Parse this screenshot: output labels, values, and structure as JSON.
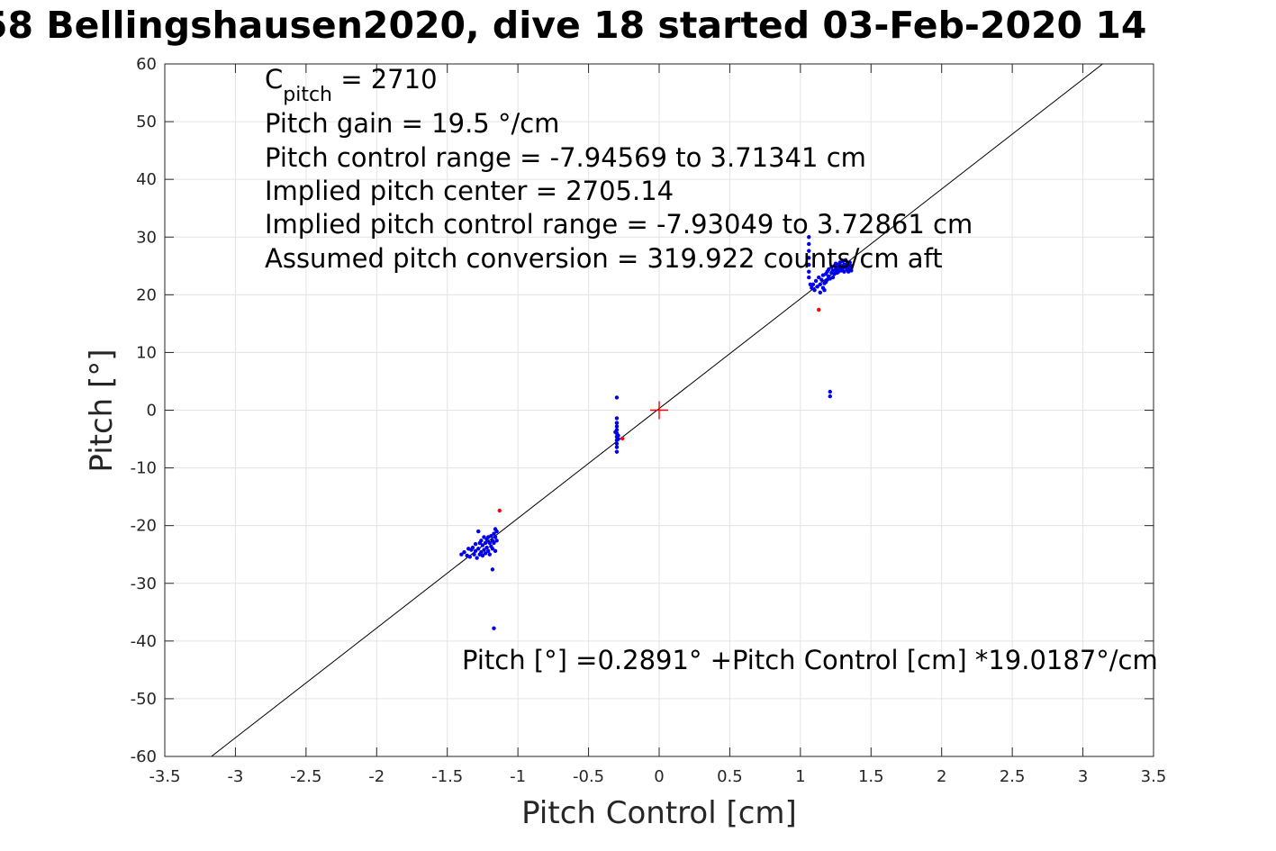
{
  "chart_data": {
    "type": "scatter",
    "title": "58 Bellingshausen2020, dive 18 started 03-Feb-2020 14",
    "xlabel": "Pitch Control [cm]",
    "ylabel": "Pitch [°]",
    "xlim": [
      -3.5,
      3.5
    ],
    "ylim": [
      -60,
      60
    ],
    "xticks": [
      -3.5,
      -3,
      -2.5,
      -2,
      -1.5,
      -1,
      -0.5,
      0,
      0.5,
      1,
      1.5,
      2,
      2.5,
      3,
      3.5
    ],
    "xtick_labels": [
      "-3.5",
      "-3",
      "-2.5",
      "-2",
      "-1.5",
      "-1",
      "-0.5",
      "0",
      "0.5",
      "1",
      "1.5",
      "2",
      "2.5",
      "3",
      "3.5"
    ],
    "yticks": [
      -60,
      -50,
      -40,
      -30,
      -20,
      -10,
      0,
      10,
      20,
      30,
      40,
      50,
      60
    ],
    "ytick_labels": [
      "-60",
      "-50",
      "-40",
      "-30",
      "-20",
      "-10",
      "0",
      "10",
      "20",
      "30",
      "40",
      "50",
      "60"
    ],
    "grid": true,
    "fit_line": {
      "intercept": 0.2891,
      "slope": 19.0187
    },
    "center_marker": {
      "x": 0,
      "y": 0,
      "color": "#ff0000"
    },
    "annotations": {
      "c_pitch_prefix": "C",
      "c_pitch_sub": "pitch",
      "c_pitch_value": " = 2710",
      "lines": [
        "Pitch gain = 19.5 °/cm",
        "Pitch control range = -7.94569 to 3.71341 cm",
        "Implied pitch center = 2705.14",
        "Implied pitch control range = -7.93049 to 3.72861 cm",
        "Assumed pitch conversion = 319.922 counts/cm aft"
      ],
      "equation": "Pitch [°] =0.2891° +Pitch Control [cm] *19.0187°/cm"
    },
    "series": [
      {
        "color": "#0000ee",
        "points": [
          [
            -1.4,
            -25.0
          ],
          [
            -1.38,
            -24.6
          ],
          [
            -1.36,
            -25.2
          ],
          [
            -1.35,
            -24.0
          ],
          [
            -1.34,
            -25.4
          ],
          [
            -1.33,
            -24.2
          ],
          [
            -1.32,
            -23.8
          ],
          [
            -1.31,
            -25.0
          ],
          [
            -1.3,
            -24.4
          ],
          [
            -1.3,
            -23.2
          ],
          [
            -1.29,
            -25.6
          ],
          [
            -1.28,
            -21.0
          ],
          [
            -1.28,
            -24.0
          ],
          [
            -1.27,
            -23.0
          ],
          [
            -1.27,
            -25.0
          ],
          [
            -1.26,
            -22.6
          ],
          [
            -1.26,
            -24.6
          ],
          [
            -1.25,
            -23.4
          ],
          [
            -1.25,
            -25.2
          ],
          [
            -1.24,
            -22.0
          ],
          [
            -1.24,
            -24.2
          ],
          [
            -1.23,
            -23.0
          ],
          [
            -1.23,
            -24.8
          ],
          [
            -1.22,
            -22.4
          ],
          [
            -1.22,
            -23.8
          ],
          [
            -1.21,
            -22.0
          ],
          [
            -1.21,
            -24.4
          ],
          [
            -1.2,
            -23.0
          ],
          [
            -1.2,
            -25.0
          ],
          [
            -1.19,
            -21.8
          ],
          [
            -1.19,
            -23.6
          ],
          [
            -1.18,
            -22.6
          ],
          [
            -1.18,
            -24.0
          ],
          [
            -1.18,
            -27.6
          ],
          [
            -1.17,
            -21.4
          ],
          [
            -1.17,
            -23.0
          ],
          [
            -1.16,
            -22.0
          ],
          [
            -1.16,
            -24.4
          ],
          [
            -1.15,
            -21.0
          ],
          [
            -1.15,
            -22.6
          ],
          [
            -1.16,
            -20.6
          ],
          [
            -1.17,
            -37.8
          ],
          [
            -0.3,
            2.2
          ],
          [
            -0.3,
            -1.4
          ],
          [
            -0.3,
            -2.2
          ],
          [
            -0.3,
            -2.8
          ],
          [
            -0.3,
            -3.4
          ],
          [
            -0.3,
            -4.0
          ],
          [
            -0.3,
            -4.6
          ],
          [
            -0.3,
            -5.2
          ],
          [
            -0.3,
            -5.8
          ],
          [
            -0.3,
            -6.4
          ],
          [
            -0.3,
            -7.2
          ],
          [
            -0.29,
            -4.4
          ],
          [
            -0.29,
            -5.0
          ],
          [
            -0.31,
            -3.8
          ],
          [
            1.06,
            30.0
          ],
          [
            1.06,
            28.8
          ],
          [
            1.06,
            27.6
          ],
          [
            1.06,
            26.4
          ],
          [
            1.06,
            25.2
          ],
          [
            1.06,
            24.0
          ],
          [
            1.06,
            23.0
          ],
          [
            1.07,
            21.8
          ],
          [
            1.08,
            21.2
          ],
          [
            1.09,
            21.8
          ],
          [
            1.1,
            20.8
          ],
          [
            1.11,
            22.4
          ],
          [
            1.12,
            21.4
          ],
          [
            1.13,
            23.0
          ],
          [
            1.14,
            21.8
          ],
          [
            1.14,
            20.4
          ],
          [
            1.15,
            22.6
          ],
          [
            1.16,
            21.2
          ],
          [
            1.16,
            23.4
          ],
          [
            1.17,
            22.0
          ],
          [
            1.17,
            20.8
          ],
          [
            1.18,
            23.6
          ],
          [
            1.18,
            22.2
          ],
          [
            1.19,
            24.0
          ],
          [
            1.19,
            22.6
          ],
          [
            1.2,
            23.2
          ],
          [
            1.2,
            24.4
          ],
          [
            1.21,
            22.8
          ],
          [
            1.21,
            2.4
          ],
          [
            1.21,
            3.2
          ],
          [
            1.22,
            23.8
          ],
          [
            1.22,
            24.8
          ],
          [
            1.23,
            23.0
          ],
          [
            1.23,
            24.2
          ],
          [
            1.24,
            25.0
          ],
          [
            1.24,
            23.6
          ],
          [
            1.25,
            24.4
          ],
          [
            1.25,
            25.4
          ],
          [
            1.26,
            23.8
          ],
          [
            1.26,
            24.8
          ],
          [
            1.27,
            25.2
          ],
          [
            1.27,
            24.0
          ],
          [
            1.28,
            24.6
          ],
          [
            1.28,
            25.6
          ],
          [
            1.29,
            24.2
          ],
          [
            1.29,
            25.0
          ],
          [
            1.3,
            24.6
          ],
          [
            1.3,
            25.8
          ],
          [
            1.31,
            24.0
          ],
          [
            1.31,
            25.2
          ],
          [
            1.32,
            24.8
          ],
          [
            1.32,
            26.0
          ],
          [
            1.33,
            24.4
          ],
          [
            1.33,
            25.4
          ],
          [
            1.34,
            25.0
          ],
          [
            1.34,
            24.0
          ],
          [
            1.35,
            25.6
          ],
          [
            1.35,
            24.6
          ],
          [
            1.36,
            25.0
          ],
          [
            1.36,
            24.2
          ]
        ]
      },
      {
        "color": "#ff0000",
        "points": [
          [
            -1.13,
            -17.4
          ],
          [
            -0.26,
            -4.9
          ],
          [
            1.13,
            17.4
          ]
        ]
      }
    ]
  }
}
